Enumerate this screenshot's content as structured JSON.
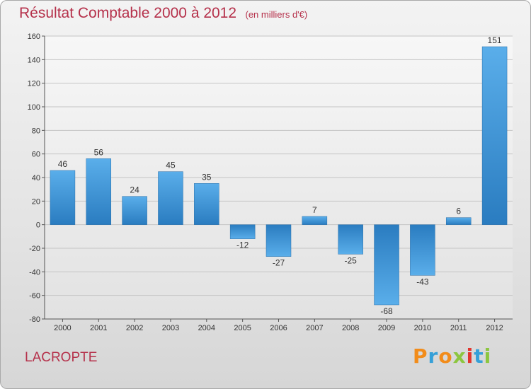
{
  "header": {
    "title": "Résultat Comptable 2000 à 2012",
    "unit": "(en milliers d'€)"
  },
  "footer": {
    "commune": "LACROPTE",
    "logo_text": "Proxiti"
  },
  "colors": {
    "title": "#b5304a",
    "bar_light": "#5aaeea",
    "bar_dark": "#2a7cc0",
    "logo": [
      "#f28c1a",
      "#36a0d8",
      "#f28c1a",
      "#8cc63f",
      "#e2352d",
      "#36a0d8",
      "#8cc63f"
    ]
  },
  "chart_data": {
    "type": "bar",
    "categories": [
      "2000",
      "2001",
      "2002",
      "2003",
      "2004",
      "2005",
      "2006",
      "2007",
      "2008",
      "2009",
      "2010",
      "2011",
      "2012"
    ],
    "values": [
      46,
      56,
      24,
      45,
      35,
      -12,
      -27,
      7,
      -25,
      -68,
      -43,
      6,
      151
    ],
    "ylim": [
      -80,
      160
    ],
    "yticks": [
      -80,
      -60,
      -40,
      -20,
      0,
      20,
      40,
      60,
      80,
      100,
      120,
      140,
      160
    ],
    "grid": true
  }
}
